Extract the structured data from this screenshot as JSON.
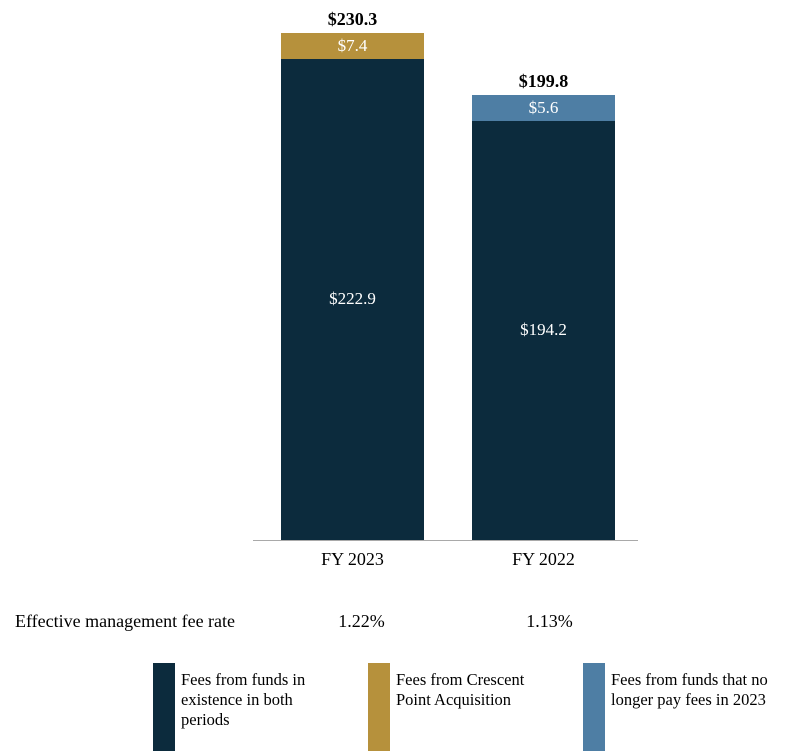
{
  "chart_data": {
    "type": "bar",
    "stacked": true,
    "categories": [
      "FY 2023",
      "FY 2022"
    ],
    "series": [
      {
        "name": "Fees from funds in existence in both periods",
        "color": "#0c2b3d",
        "values": [
          222.9,
          194.2
        ],
        "labels": [
          "$222.9",
          "$194.2"
        ]
      },
      {
        "name": "Fees from Crescent Point Acquisition",
        "color": "#b6913c",
        "values": [
          7.4,
          0
        ],
        "labels": [
          "$7.4",
          ""
        ]
      },
      {
        "name": "Fees from funds that no longer pay fees in 2023",
        "color": "#4e7ea4",
        "values": [
          0,
          5.6
        ],
        "labels": [
          "",
          "$5.6"
        ]
      }
    ],
    "totals": {
      "values": [
        230.3,
        199.8
      ],
      "labels": [
        "$230.3",
        "$199.8"
      ]
    },
    "ylim": [
      0,
      240
    ],
    "grid": false,
    "legend_position": "bottom"
  },
  "footer": {
    "label": "Effective management fee rate",
    "values": [
      "1.22%",
      "1.13%"
    ]
  }
}
